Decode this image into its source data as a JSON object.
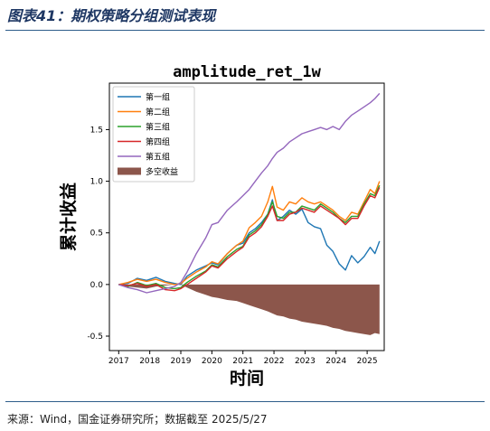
{
  "header": {
    "title": "图表41：期权策略分组测试表现"
  },
  "footer": {
    "source": "来源：Wind，国金证券研究所；数据截至 2025/5/27"
  },
  "chart_data": {
    "type": "line",
    "title": "amplitude_ret_1w",
    "xlabel": "时间",
    "ylabel": "累计收益",
    "xlim": [
      2016.7,
      2025.55
    ],
    "ylim": [
      -0.64,
      1.95
    ],
    "xticks": [
      "2017",
      "2018",
      "2019",
      "2020",
      "2021",
      "2022",
      "2023",
      "2024",
      "2025"
    ],
    "yticks": [
      "-0.5",
      "0.0",
      "0.5",
      "1.0",
      "1.5"
    ],
    "legend_position": "top-left",
    "series": [
      {
        "name": "第一组",
        "color": "#1f77b4",
        "x": [
          2017.0,
          2017.3,
          2017.6,
          2017.9,
          2018.2,
          2018.5,
          2018.8,
          2019.0,
          2019.2,
          2019.5,
          2019.8,
          2020.0,
          2020.2,
          2020.5,
          2020.8,
          2021.0,
          2021.2,
          2021.4,
          2021.6,
          2021.8,
          2021.95,
          2022.1,
          2022.3,
          2022.5,
          2022.7,
          2022.9,
          2023.1,
          2023.3,
          2023.5,
          2023.7,
          2023.9,
          2024.1,
          2024.3,
          2024.5,
          2024.7,
          2024.9,
          2025.1,
          2025.25,
          2025.4
        ],
        "y": [
          0.0,
          0.01,
          0.06,
          0.04,
          0.07,
          0.03,
          0.01,
          0.0,
          0.08,
          0.14,
          0.18,
          0.21,
          0.19,
          0.3,
          0.38,
          0.4,
          0.5,
          0.54,
          0.6,
          0.68,
          0.82,
          0.62,
          0.66,
          0.72,
          0.68,
          0.73,
          0.6,
          0.56,
          0.54,
          0.38,
          0.32,
          0.2,
          0.14,
          0.28,
          0.21,
          0.27,
          0.36,
          0.3,
          0.42
        ]
      },
      {
        "name": "第二组",
        "color": "#ff7f0e",
        "x": [
          2017.0,
          2017.3,
          2017.6,
          2017.9,
          2018.2,
          2018.5,
          2018.8,
          2019.0,
          2019.2,
          2019.5,
          2019.8,
          2020.0,
          2020.2,
          2020.5,
          2020.8,
          2021.0,
          2021.2,
          2021.4,
          2021.6,
          2021.8,
          2021.95,
          2022.1,
          2022.3,
          2022.5,
          2022.7,
          2022.9,
          2023.1,
          2023.3,
          2023.5,
          2023.7,
          2023.9,
          2024.1,
          2024.3,
          2024.5,
          2024.7,
          2024.9,
          2025.1,
          2025.25,
          2025.4
        ],
        "y": [
          0.0,
          0.02,
          0.05,
          0.03,
          0.05,
          0.02,
          0.0,
          0.01,
          0.06,
          0.12,
          0.17,
          0.22,
          0.2,
          0.3,
          0.38,
          0.42,
          0.55,
          0.6,
          0.66,
          0.8,
          0.95,
          0.75,
          0.72,
          0.8,
          0.78,
          0.84,
          0.8,
          0.78,
          0.8,
          0.76,
          0.72,
          0.66,
          0.62,
          0.7,
          0.68,
          0.8,
          0.92,
          0.88,
          1.0
        ]
      },
      {
        "name": "第三组",
        "color": "#2ca02c",
        "x": [
          2017.0,
          2017.3,
          2017.6,
          2017.9,
          2018.2,
          2018.5,
          2018.8,
          2019.0,
          2019.2,
          2019.5,
          2019.8,
          2020.0,
          2020.2,
          2020.5,
          2020.8,
          2021.0,
          2021.2,
          2021.4,
          2021.6,
          2021.8,
          2021.95,
          2022.1,
          2022.3,
          2022.5,
          2022.7,
          2022.9,
          2023.1,
          2023.3,
          2023.5,
          2023.7,
          2023.9,
          2024.1,
          2024.3,
          2024.5,
          2024.7,
          2024.9,
          2025.1,
          2025.25,
          2025.4
        ],
        "y": [
          0.0,
          -0.02,
          0.02,
          -0.01,
          0.01,
          -0.03,
          -0.04,
          -0.03,
          0.02,
          0.08,
          0.13,
          0.19,
          0.17,
          0.27,
          0.34,
          0.37,
          0.48,
          0.52,
          0.58,
          0.68,
          0.8,
          0.66,
          0.64,
          0.7,
          0.7,
          0.76,
          0.74,
          0.72,
          0.78,
          0.74,
          0.7,
          0.64,
          0.6,
          0.66,
          0.66,
          0.78,
          0.88,
          0.86,
          0.96
        ]
      },
      {
        "name": "第四组",
        "color": "#d62728",
        "x": [
          2017.0,
          2017.3,
          2017.6,
          2017.9,
          2018.2,
          2018.5,
          2018.8,
          2019.0,
          2019.2,
          2019.5,
          2019.8,
          2020.0,
          2020.2,
          2020.5,
          2020.8,
          2021.0,
          2021.2,
          2021.4,
          2021.6,
          2021.8,
          2021.95,
          2022.1,
          2022.3,
          2022.5,
          2022.7,
          2022.9,
          2023.1,
          2023.3,
          2023.5,
          2023.7,
          2023.9,
          2024.1,
          2024.3,
          2024.5,
          2024.7,
          2024.9,
          2025.1,
          2025.25,
          2025.4
        ],
        "y": [
          0.0,
          -0.01,
          0.01,
          -0.02,
          0.0,
          -0.05,
          -0.06,
          -0.04,
          0.0,
          0.06,
          0.12,
          0.18,
          0.16,
          0.25,
          0.32,
          0.36,
          0.46,
          0.5,
          0.56,
          0.66,
          0.76,
          0.62,
          0.62,
          0.68,
          0.7,
          0.74,
          0.72,
          0.7,
          0.76,
          0.72,
          0.68,
          0.64,
          0.58,
          0.64,
          0.64,
          0.76,
          0.86,
          0.84,
          0.94
        ]
      },
      {
        "name": "第五组",
        "color": "#9467bd",
        "x": [
          2017.0,
          2017.3,
          2017.6,
          2017.9,
          2018.2,
          2018.5,
          2018.8,
          2019.0,
          2019.2,
          2019.5,
          2019.8,
          2020.0,
          2020.2,
          2020.5,
          2020.8,
          2021.0,
          2021.2,
          2021.4,
          2021.6,
          2021.8,
          2021.95,
          2022.1,
          2022.3,
          2022.5,
          2022.7,
          2022.9,
          2023.1,
          2023.3,
          2023.5,
          2023.7,
          2023.9,
          2024.1,
          2024.3,
          2024.5,
          2024.7,
          2024.9,
          2025.1,
          2025.25,
          2025.4
        ],
        "y": [
          0.0,
          -0.03,
          -0.05,
          -0.08,
          -0.06,
          -0.04,
          -0.02,
          0.02,
          0.12,
          0.3,
          0.45,
          0.58,
          0.6,
          0.72,
          0.8,
          0.86,
          0.92,
          1.0,
          1.08,
          1.15,
          1.22,
          1.28,
          1.32,
          1.38,
          1.42,
          1.46,
          1.48,
          1.5,
          1.52,
          1.5,
          1.53,
          1.5,
          1.58,
          1.64,
          1.68,
          1.72,
          1.76,
          1.8,
          1.85
        ]
      },
      {
        "name": "多空收益",
        "color": "#8c564b",
        "kind": "area",
        "x": [
          2017.0,
          2017.3,
          2017.6,
          2017.9,
          2018.2,
          2018.5,
          2018.8,
          2019.0,
          2019.2,
          2019.5,
          2019.8,
          2020.0,
          2020.2,
          2020.5,
          2020.8,
          2021.0,
          2021.2,
          2021.4,
          2021.6,
          2021.8,
          2021.95,
          2022.1,
          2022.3,
          2022.5,
          2022.7,
          2022.9,
          2023.1,
          2023.3,
          2023.5,
          2023.7,
          2023.9,
          2024.1,
          2024.3,
          2024.5,
          2024.7,
          2024.9,
          2025.1,
          2025.25,
          2025.4
        ],
        "y": [
          0.0,
          -0.02,
          -0.03,
          -0.04,
          -0.02,
          -0.01,
          0.0,
          0.0,
          -0.03,
          -0.07,
          -0.1,
          -0.12,
          -0.13,
          -0.15,
          -0.16,
          -0.18,
          -0.2,
          -0.22,
          -0.24,
          -0.26,
          -0.28,
          -0.3,
          -0.31,
          -0.33,
          -0.34,
          -0.36,
          -0.37,
          -0.38,
          -0.39,
          -0.4,
          -0.42,
          -0.43,
          -0.45,
          -0.46,
          -0.47,
          -0.48,
          -0.49,
          -0.47,
          -0.48
        ]
      }
    ]
  }
}
